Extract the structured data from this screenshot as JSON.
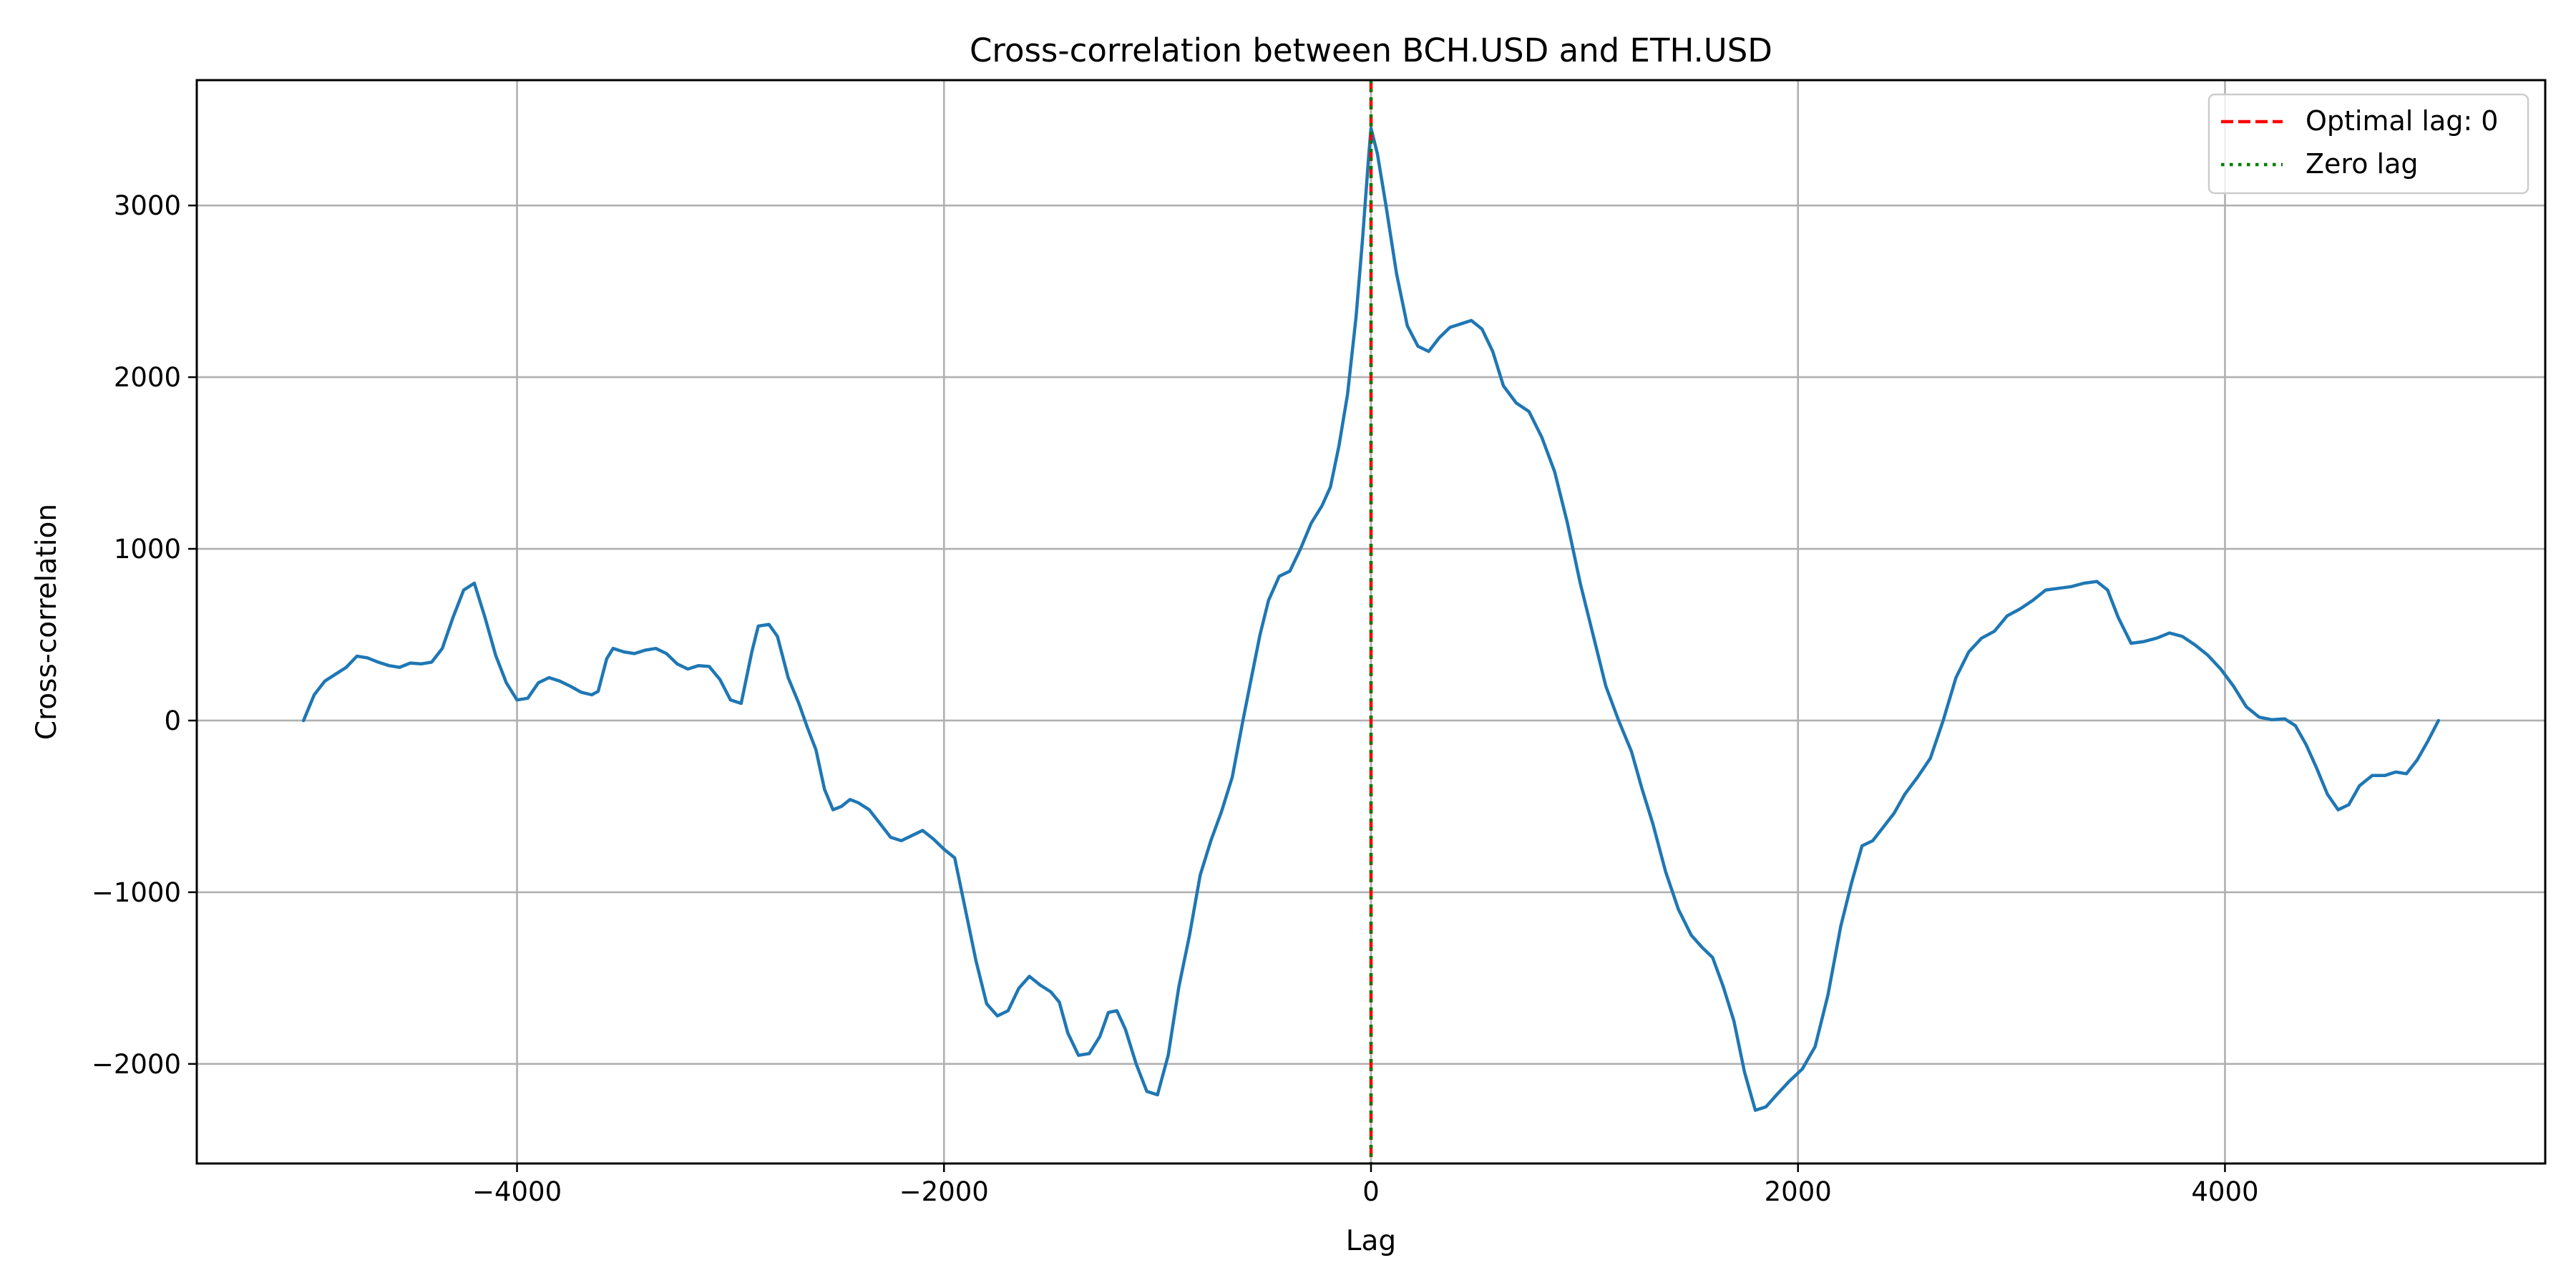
{
  "chart_data": {
    "type": "line",
    "title": "Cross-correlation between BCH.USD and ETH.USD",
    "xlabel": "Lag",
    "ylabel": "Cross-correlation",
    "xlim": [
      -5500,
      5500
    ],
    "ylim": [
      -2580,
      3730
    ],
    "grid": true,
    "legend_position": "top-right",
    "x_ticks": [
      -4000,
      -2000,
      0,
      2000,
      4000
    ],
    "y_ticks": [
      -2000,
      -1000,
      0,
      1000,
      2000,
      3000
    ],
    "series": [
      {
        "name": "",
        "color": "#1f77b4",
        "points": [
          [
            -5000,
            0
          ],
          [
            -4950,
            150
          ],
          [
            -4900,
            230
          ],
          [
            -4850,
            270
          ],
          [
            -4800,
            310
          ],
          [
            -4750,
            375
          ],
          [
            -4700,
            365
          ],
          [
            -4650,
            340
          ],
          [
            -4600,
            320
          ],
          [
            -4550,
            310
          ],
          [
            -4500,
            335
          ],
          [
            -4450,
            330
          ],
          [
            -4400,
            340
          ],
          [
            -4350,
            420
          ],
          [
            -4300,
            600
          ],
          [
            -4250,
            760
          ],
          [
            -4200,
            800
          ],
          [
            -4150,
            600
          ],
          [
            -4100,
            380
          ],
          [
            -4050,
            220
          ],
          [
            -4000,
            120
          ],
          [
            -3950,
            130
          ],
          [
            -3900,
            220
          ],
          [
            -3850,
            250
          ],
          [
            -3800,
            230
          ],
          [
            -3750,
            200
          ],
          [
            -3700,
            165
          ],
          [
            -3650,
            150
          ],
          [
            -3620,
            170
          ],
          [
            -3580,
            360
          ],
          [
            -3550,
            420
          ],
          [
            -3500,
            400
          ],
          [
            -3450,
            390
          ],
          [
            -3400,
            410
          ],
          [
            -3350,
            420
          ],
          [
            -3300,
            390
          ],
          [
            -3250,
            330
          ],
          [
            -3200,
            300
          ],
          [
            -3150,
            320
          ],
          [
            -3100,
            315
          ],
          [
            -3050,
            240
          ],
          [
            -3000,
            120
          ],
          [
            -2950,
            100
          ],
          [
            -2900,
            400
          ],
          [
            -2870,
            550
          ],
          [
            -2820,
            560
          ],
          [
            -2780,
            490
          ],
          [
            -2730,
            250
          ],
          [
            -2680,
            100
          ],
          [
            -2640,
            -40
          ],
          [
            -2600,
            -170
          ],
          [
            -2560,
            -400
          ],
          [
            -2520,
            -520
          ],
          [
            -2480,
            -500
          ],
          [
            -2440,
            -460
          ],
          [
            -2400,
            -480
          ],
          [
            -2350,
            -520
          ],
          [
            -2300,
            -600
          ],
          [
            -2250,
            -680
          ],
          [
            -2200,
            -700
          ],
          [
            -2150,
            -670
          ],
          [
            -2100,
            -640
          ],
          [
            -2050,
            -690
          ],
          [
            -2000,
            -750
          ],
          [
            -1950,
            -800
          ],
          [
            -1900,
            -1100
          ],
          [
            -1850,
            -1400
          ],
          [
            -1800,
            -1650
          ],
          [
            -1750,
            -1720
          ],
          [
            -1700,
            -1690
          ],
          [
            -1650,
            -1560
          ],
          [
            -1600,
            -1490
          ],
          [
            -1550,
            -1540
          ],
          [
            -1500,
            -1580
          ],
          [
            -1460,
            -1640
          ],
          [
            -1420,
            -1820
          ],
          [
            -1370,
            -1950
          ],
          [
            -1320,
            -1940
          ],
          [
            -1270,
            -1840
          ],
          [
            -1230,
            -1700
          ],
          [
            -1190,
            -1690
          ],
          [
            -1150,
            -1800
          ],
          [
            -1100,
            -2000
          ],
          [
            -1050,
            -2160
          ],
          [
            -1000,
            -2180
          ],
          [
            -950,
            -1950
          ],
          [
            -900,
            -1550
          ],
          [
            -850,
            -1250
          ],
          [
            -800,
            -900
          ],
          [
            -750,
            -700
          ],
          [
            -700,
            -530
          ],
          [
            -650,
            -330
          ],
          [
            -600,
            0
          ],
          [
            -560,
            250
          ],
          [
            -520,
            500
          ],
          [
            -480,
            700
          ],
          [
            -430,
            840
          ],
          [
            -380,
            870
          ],
          [
            -330,
            1000
          ],
          [
            -280,
            1150
          ],
          [
            -230,
            1250
          ],
          [
            -190,
            1360
          ],
          [
            -150,
            1600
          ],
          [
            -110,
            1900
          ],
          [
            -70,
            2350
          ],
          [
            -40,
            2800
          ],
          [
            -10,
            3300
          ],
          [
            0,
            3450
          ],
          [
            30,
            3300
          ],
          [
            70,
            3000
          ],
          [
            120,
            2600
          ],
          [
            170,
            2300
          ],
          [
            220,
            2180
          ],
          [
            270,
            2150
          ],
          [
            320,
            2230
          ],
          [
            370,
            2290
          ],
          [
            420,
            2310
          ],
          [
            470,
            2330
          ],
          [
            520,
            2280
          ],
          [
            570,
            2150
          ],
          [
            620,
            1950
          ],
          [
            680,
            1850
          ],
          [
            740,
            1800
          ],
          [
            800,
            1650
          ],
          [
            860,
            1450
          ],
          [
            920,
            1150
          ],
          [
            980,
            800
          ],
          [
            1040,
            500
          ],
          [
            1100,
            200
          ],
          [
            1160,
            0
          ],
          [
            1220,
            -180
          ],
          [
            1270,
            -400
          ],
          [
            1320,
            -600
          ],
          [
            1380,
            -880
          ],
          [
            1440,
            -1100
          ],
          [
            1500,
            -1250
          ],
          [
            1550,
            -1320
          ],
          [
            1600,
            -1380
          ],
          [
            1650,
            -1550
          ],
          [
            1700,
            -1750
          ],
          [
            1750,
            -2050
          ],
          [
            1800,
            -2270
          ],
          [
            1850,
            -2250
          ],
          [
            1900,
            -2180
          ],
          [
            1960,
            -2100
          ],
          [
            2020,
            -2030
          ],
          [
            2080,
            -1900
          ],
          [
            2140,
            -1600
          ],
          [
            2200,
            -1200
          ],
          [
            2250,
            -950
          ],
          [
            2300,
            -730
          ],
          [
            2350,
            -700
          ],
          [
            2400,
            -620
          ],
          [
            2450,
            -540
          ],
          [
            2500,
            -430
          ],
          [
            2560,
            -330
          ],
          [
            2620,
            -220
          ],
          [
            2680,
            0
          ],
          [
            2740,
            250
          ],
          [
            2800,
            400
          ],
          [
            2860,
            480
          ],
          [
            2920,
            520
          ],
          [
            2980,
            610
          ],
          [
            3040,
            650
          ],
          [
            3100,
            700
          ],
          [
            3160,
            760
          ],
          [
            3220,
            770
          ],
          [
            3280,
            780
          ],
          [
            3340,
            800
          ],
          [
            3400,
            810
          ],
          [
            3450,
            760
          ],
          [
            3500,
            600
          ],
          [
            3560,
            450
          ],
          [
            3620,
            460
          ],
          [
            3680,
            480
          ],
          [
            3740,
            510
          ],
          [
            3800,
            490
          ],
          [
            3860,
            440
          ],
          [
            3920,
            380
          ],
          [
            3980,
            300
          ],
          [
            4040,
            200
          ],
          [
            4100,
            80
          ],
          [
            4160,
            20
          ],
          [
            4220,
            5
          ],
          [
            4280,
            10
          ],
          [
            4330,
            -30
          ],
          [
            4380,
            -140
          ],
          [
            4430,
            -280
          ],
          [
            4480,
            -430
          ],
          [
            4530,
            -520
          ],
          [
            4580,
            -490
          ],
          [
            4630,
            -380
          ],
          [
            4690,
            -320
          ],
          [
            4750,
            -320
          ],
          [
            4800,
            -300
          ],
          [
            4850,
            -310
          ],
          [
            4900,
            -230
          ],
          [
            4950,
            -120
          ],
          [
            5000,
            0
          ]
        ]
      }
    ],
    "vlines": [
      {
        "name": "Optimal lag: 0",
        "x": 0,
        "color": "#ff0000",
        "style": "dashed"
      },
      {
        "name": "Zero lag",
        "x": 0,
        "color": "#008000",
        "style": "dotted"
      }
    ]
  }
}
